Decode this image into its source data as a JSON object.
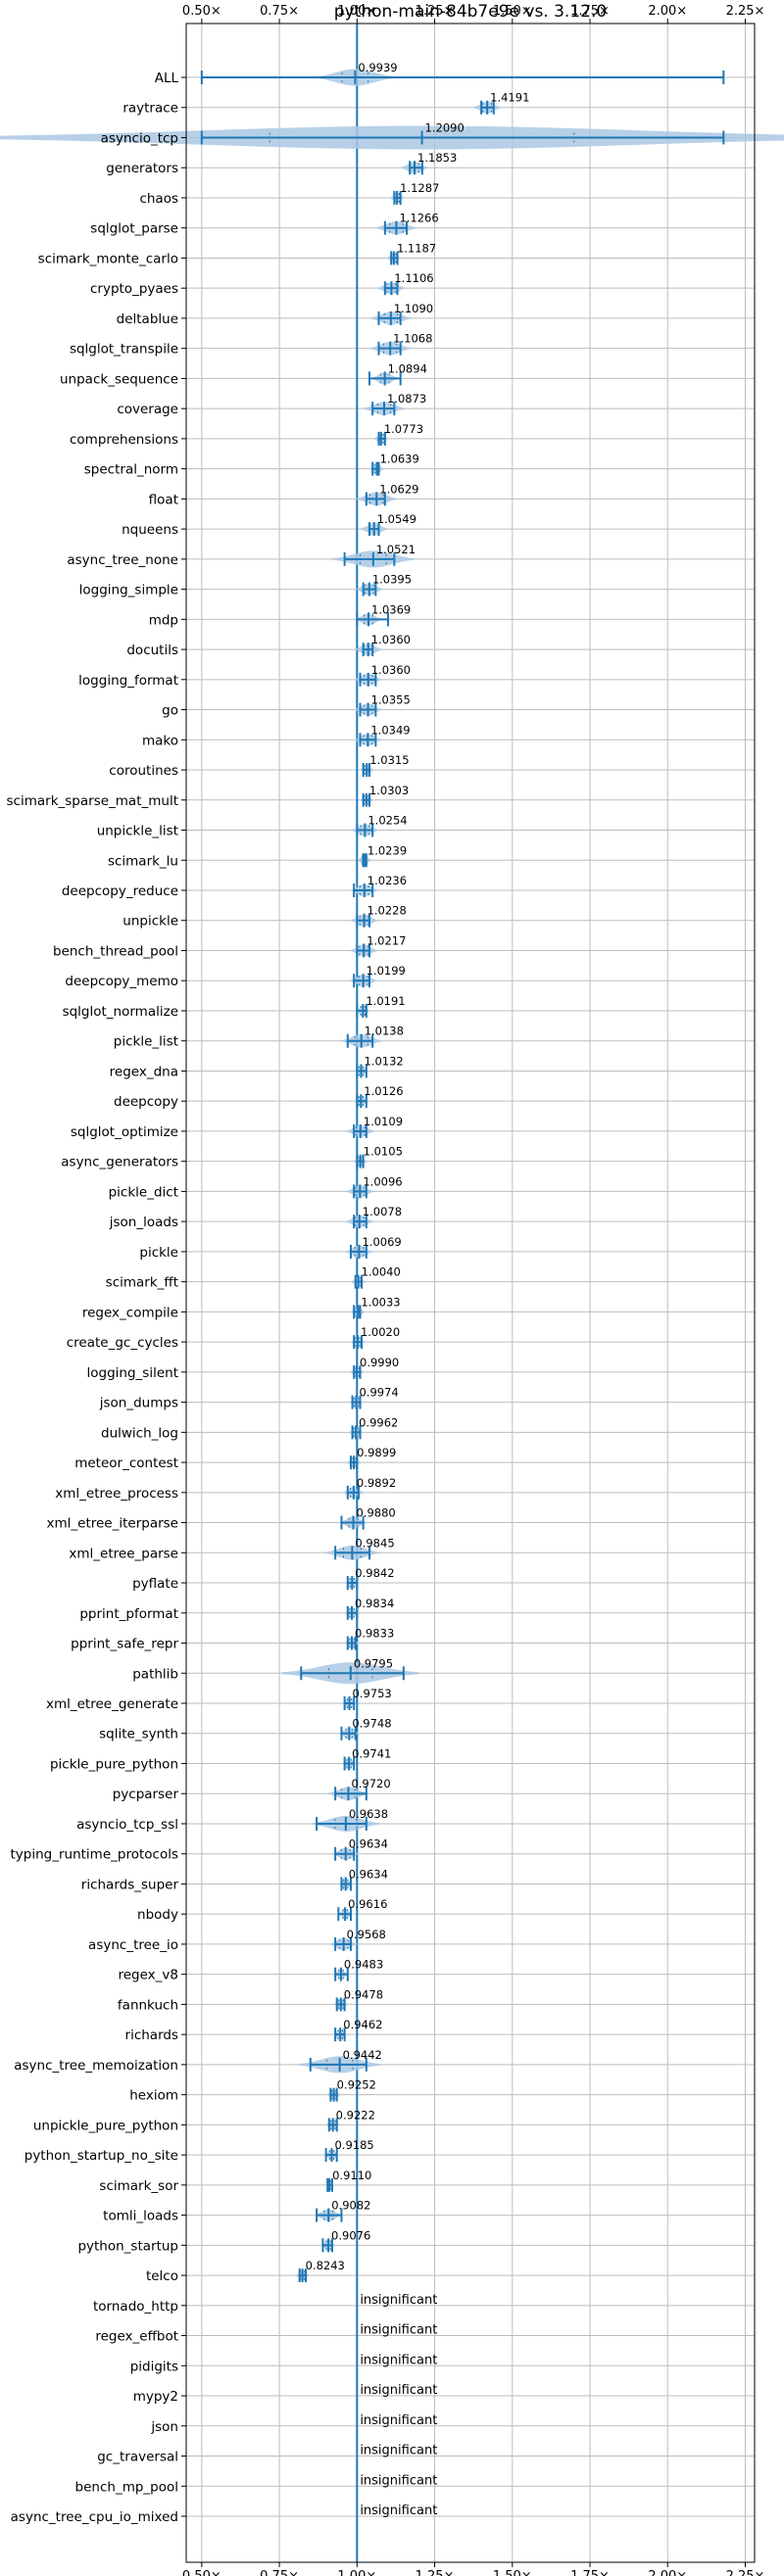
{
  "chart_data": {
    "type": "violin",
    "title": "python-main-84b7e9e vs. 3.12.0",
    "xlabel": "",
    "ylabel": "",
    "xlim": [
      0.45,
      2.28
    ],
    "x_ticks": [
      {
        "value": 0.5,
        "label": "0.50×"
      },
      {
        "value": 0.75,
        "label": "0.75×"
      },
      {
        "value": 1.0,
        "label": "1.00×"
      },
      {
        "value": 1.25,
        "label": "1.25×"
      },
      {
        "value": 1.5,
        "label": "1.50×"
      },
      {
        "value": 1.75,
        "label": "1.75×"
      },
      {
        "value": 2.0,
        "label": "2.00×"
      },
      {
        "value": 2.25,
        "label": "2.25×"
      }
    ],
    "reference_line": 1.0,
    "grid": true,
    "colors": {
      "violin": "#aac8e3",
      "whisker": "#1f77b4",
      "grid": "#bdbdbd"
    },
    "insignificant_label": "insignificant",
    "benchmarks": [
      {
        "name": "ALL",
        "value": 0.9939,
        "min": 0.5,
        "max": 2.18,
        "spread": 0.06
      },
      {
        "name": "raytrace",
        "value": 1.4191,
        "min": 1.4,
        "max": 1.44,
        "spread": 0.02
      },
      {
        "name": "asyncio_tcp",
        "value": 1.209,
        "min": 0.5,
        "max": 2.18,
        "spread": 0.7
      },
      {
        "name": "generators",
        "value": 1.1853,
        "min": 1.17,
        "max": 1.21,
        "spread": 0.02
      },
      {
        "name": "chaos",
        "value": 1.1287,
        "min": 1.12,
        "max": 1.14,
        "spread": 0.01
      },
      {
        "name": "sqlglot_parse",
        "value": 1.1266,
        "min": 1.09,
        "max": 1.16,
        "spread": 0.03
      },
      {
        "name": "scimark_monte_carlo",
        "value": 1.1187,
        "min": 1.11,
        "max": 1.13,
        "spread": 0.01
      },
      {
        "name": "crypto_pyaes",
        "value": 1.1106,
        "min": 1.09,
        "max": 1.13,
        "spread": 0.02
      },
      {
        "name": "deltablue",
        "value": 1.109,
        "min": 1.07,
        "max": 1.14,
        "spread": 0.03
      },
      {
        "name": "sqlglot_transpile",
        "value": 1.1068,
        "min": 1.07,
        "max": 1.14,
        "spread": 0.03
      },
      {
        "name": "unpack_sequence",
        "value": 1.0894,
        "min": 1.04,
        "max": 1.14,
        "spread": 0.02
      },
      {
        "name": "coverage",
        "value": 1.0873,
        "min": 1.05,
        "max": 1.12,
        "spread": 0.03
      },
      {
        "name": "comprehensions",
        "value": 1.0773,
        "min": 1.07,
        "max": 1.09,
        "spread": 0.01
      },
      {
        "name": "spectral_norm",
        "value": 1.0639,
        "min": 1.05,
        "max": 1.07,
        "spread": 0.01
      },
      {
        "name": "float",
        "value": 1.0629,
        "min": 1.03,
        "max": 1.09,
        "spread": 0.03
      },
      {
        "name": "nqueens",
        "value": 1.0549,
        "min": 1.04,
        "max": 1.07,
        "spread": 0.02
      },
      {
        "name": "async_tree_none",
        "value": 1.0521,
        "min": 0.96,
        "max": 1.12,
        "spread": 0.06
      },
      {
        "name": "logging_simple",
        "value": 1.0395,
        "min": 1.02,
        "max": 1.06,
        "spread": 0.02
      },
      {
        "name": "mdp",
        "value": 1.0369,
        "min": 1.0,
        "max": 1.1,
        "spread": 0.02
      },
      {
        "name": "docutils",
        "value": 1.036,
        "min": 1.02,
        "max": 1.05,
        "spread": 0.02
      },
      {
        "name": "logging_format",
        "value": 1.036,
        "min": 1.01,
        "max": 1.06,
        "spread": 0.02
      },
      {
        "name": "go",
        "value": 1.0355,
        "min": 1.01,
        "max": 1.06,
        "spread": 0.02
      },
      {
        "name": "mako",
        "value": 1.0349,
        "min": 1.01,
        "max": 1.06,
        "spread": 0.02
      },
      {
        "name": "coroutines",
        "value": 1.0315,
        "min": 1.02,
        "max": 1.04,
        "spread": 0.01
      },
      {
        "name": "scimark_sparse_mat_mult",
        "value": 1.0303,
        "min": 1.02,
        "max": 1.04,
        "spread": 0.01
      },
      {
        "name": "unpickle_list",
        "value": 1.0254,
        "min": 1.0,
        "max": 1.05,
        "spread": 0.02
      },
      {
        "name": "scimark_lu",
        "value": 1.0239,
        "min": 1.02,
        "max": 1.03,
        "spread": 0.01
      },
      {
        "name": "deepcopy_reduce",
        "value": 1.0236,
        "min": 0.99,
        "max": 1.05,
        "spread": 0.02
      },
      {
        "name": "unpickle",
        "value": 1.0228,
        "min": 1.0,
        "max": 1.04,
        "spread": 0.02
      },
      {
        "name": "bench_thread_pool",
        "value": 1.0217,
        "min": 1.0,
        "max": 1.04,
        "spread": 0.02
      },
      {
        "name": "deepcopy_memo",
        "value": 1.0199,
        "min": 0.99,
        "max": 1.04,
        "spread": 0.02
      },
      {
        "name": "sqlglot_normalize",
        "value": 1.0191,
        "min": 1.0,
        "max": 1.03,
        "spread": 0.01
      },
      {
        "name": "pickle_list",
        "value": 1.0138,
        "min": 0.97,
        "max": 1.05,
        "spread": 0.03
      },
      {
        "name": "regex_dna",
        "value": 1.0132,
        "min": 1.0,
        "max": 1.03,
        "spread": 0.01
      },
      {
        "name": "deepcopy",
        "value": 1.0126,
        "min": 1.0,
        "max": 1.03,
        "spread": 0.01
      },
      {
        "name": "sqlglot_optimize",
        "value": 1.0109,
        "min": 0.99,
        "max": 1.03,
        "spread": 0.02
      },
      {
        "name": "async_generators",
        "value": 1.0105,
        "min": 1.0,
        "max": 1.02,
        "spread": 0.01
      },
      {
        "name": "pickle_dict",
        "value": 1.0096,
        "min": 0.99,
        "max": 1.03,
        "spread": 0.02
      },
      {
        "name": "json_loads",
        "value": 1.0078,
        "min": 0.99,
        "max": 1.03,
        "spread": 0.02
      },
      {
        "name": "pickle",
        "value": 1.0069,
        "min": 0.98,
        "max": 1.03,
        "spread": 0.02
      },
      {
        "name": "scimark_fft",
        "value": 1.004,
        "min": 0.995,
        "max": 1.015,
        "spread": 0.01
      },
      {
        "name": "regex_compile",
        "value": 1.0033,
        "min": 0.99,
        "max": 1.01,
        "spread": 0.01
      },
      {
        "name": "create_gc_cycles",
        "value": 1.002,
        "min": 0.99,
        "max": 1.015,
        "spread": 0.01
      },
      {
        "name": "logging_silent",
        "value": 0.999,
        "min": 0.99,
        "max": 1.01,
        "spread": 0.01
      },
      {
        "name": "json_dumps",
        "value": 0.9974,
        "min": 0.985,
        "max": 1.01,
        "spread": 0.01
      },
      {
        "name": "dulwich_log",
        "value": 0.9962,
        "min": 0.985,
        "max": 1.01,
        "spread": 0.01
      },
      {
        "name": "meteor_contest",
        "value": 0.9899,
        "min": 0.98,
        "max": 1.0,
        "spread": 0.01
      },
      {
        "name": "xml_etree_process",
        "value": 0.9892,
        "min": 0.97,
        "max": 1.005,
        "spread": 0.015
      },
      {
        "name": "xml_etree_iterparse",
        "value": 0.988,
        "min": 0.95,
        "max": 1.02,
        "spread": 0.02
      },
      {
        "name": "xml_etree_parse",
        "value": 0.9845,
        "min": 0.93,
        "max": 1.04,
        "spread": 0.04
      },
      {
        "name": "pyflate",
        "value": 0.9842,
        "min": 0.97,
        "max": 1.0,
        "spread": 0.01
      },
      {
        "name": "pprint_pformat",
        "value": 0.9834,
        "min": 0.97,
        "max": 1.0,
        "spread": 0.01
      },
      {
        "name": "pprint_safe_repr",
        "value": 0.9833,
        "min": 0.97,
        "max": 0.995,
        "spread": 0.01
      },
      {
        "name": "pathlib",
        "value": 0.9795,
        "min": 0.82,
        "max": 1.15,
        "spread": 0.1
      },
      {
        "name": "xml_etree_generate",
        "value": 0.9753,
        "min": 0.96,
        "max": 0.99,
        "spread": 0.01
      },
      {
        "name": "sqlite_synth",
        "value": 0.9748,
        "min": 0.95,
        "max": 0.995,
        "spread": 0.015
      },
      {
        "name": "pickle_pure_python",
        "value": 0.9741,
        "min": 0.96,
        "max": 0.99,
        "spread": 0.01
      },
      {
        "name": "pycparser",
        "value": 0.972,
        "min": 0.93,
        "max": 1.03,
        "spread": 0.03
      },
      {
        "name": "asyncio_tcp_ssl",
        "value": 0.9638,
        "min": 0.87,
        "max": 1.03,
        "spread": 0.05
      },
      {
        "name": "typing_runtime_protocols",
        "value": 0.9634,
        "min": 0.93,
        "max": 0.99,
        "spread": 0.02
      },
      {
        "name": "richards_super",
        "value": 0.9634,
        "min": 0.95,
        "max": 0.98,
        "spread": 0.01
      },
      {
        "name": "nbody",
        "value": 0.9616,
        "min": 0.94,
        "max": 0.98,
        "spread": 0.01
      },
      {
        "name": "async_tree_io",
        "value": 0.9568,
        "min": 0.93,
        "max": 0.98,
        "spread": 0.02
      },
      {
        "name": "regex_v8",
        "value": 0.9483,
        "min": 0.93,
        "max": 0.97,
        "spread": 0.01
      },
      {
        "name": "fannkuch",
        "value": 0.9478,
        "min": 0.935,
        "max": 0.96,
        "spread": 0.01
      },
      {
        "name": "richards",
        "value": 0.9462,
        "min": 0.93,
        "max": 0.96,
        "spread": 0.01
      },
      {
        "name": "async_tree_memoization",
        "value": 0.9442,
        "min": 0.85,
        "max": 1.03,
        "spread": 0.06
      },
      {
        "name": "hexiom",
        "value": 0.9252,
        "min": 0.915,
        "max": 0.935,
        "spread": 0.01
      },
      {
        "name": "unpickle_pure_python",
        "value": 0.9222,
        "min": 0.91,
        "max": 0.935,
        "spread": 0.01
      },
      {
        "name": "python_startup_no_site",
        "value": 0.9185,
        "min": 0.9,
        "max": 0.935,
        "spread": 0.01
      },
      {
        "name": "scimark_sor",
        "value": 0.911,
        "min": 0.905,
        "max": 0.92,
        "spread": 0.005
      },
      {
        "name": "tomli_loads",
        "value": 0.9082,
        "min": 0.87,
        "max": 0.95,
        "spread": 0.02
      },
      {
        "name": "python_startup",
        "value": 0.9076,
        "min": 0.89,
        "max": 0.92,
        "spread": 0.01
      },
      {
        "name": "telco",
        "value": 0.8243,
        "min": 0.815,
        "max": 0.835,
        "spread": 0.01
      },
      {
        "name": "tornado_http",
        "insignificant": true
      },
      {
        "name": "regex_effbot",
        "insignificant": true
      },
      {
        "name": "pidigits",
        "insignificant": true
      },
      {
        "name": "mypy2",
        "insignificant": true
      },
      {
        "name": "json",
        "insignificant": true
      },
      {
        "name": "gc_traversal",
        "insignificant": true
      },
      {
        "name": "bench_mp_pool",
        "insignificant": true
      },
      {
        "name": "async_tree_cpu_io_mixed",
        "insignificant": true
      }
    ]
  }
}
